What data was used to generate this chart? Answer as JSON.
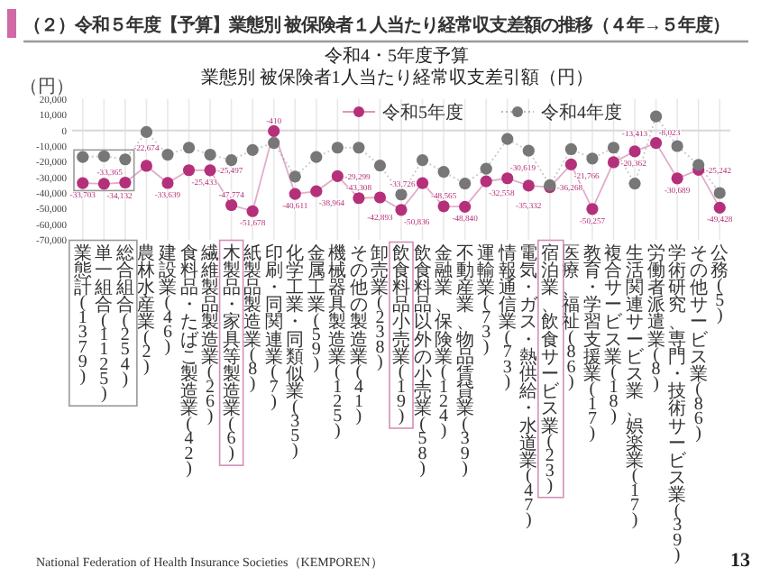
{
  "chart_data": {
    "type": "line",
    "title": "（２）令和５年度【予算】業態別 被保険者１人当たり経常収支差額の推移（４年→５年度）",
    "subtitle": "令和4・5年度予算",
    "ylabel": "（円）",
    "categories": [
      "業態計(1379)",
      "単一組合(1125)",
      "総合組合(254)",
      "農林水産業(2)",
      "建設業(46)",
      "食料品・たばこ製造業(42)",
      "繊維製品製造業(26)",
      "木製品・家具等製造業(6)",
      "紙製品製造業(8)",
      "印刷・同関連業(7)",
      "化学工業・同類似業(35)",
      "金属工業(59)",
      "機械器具製造業(125)",
      "その他の製造業(41)",
      "卸売業(238)",
      "飲食料品小売業(19)",
      "飲食料品以外の小売業(58)",
      "金融業、保険業(124)",
      "不動産業、物品賃貸業(39)",
      "運輸業(73)",
      "情報通信業(73)",
      "電気・ガス・熱供給・水道業(47)",
      "宿泊業、飲食サービス業(23)",
      "医療、福祉(86)",
      "教育・学習支援業(17)",
      "複合サービス業(18)",
      "生活関連サービス業、娯楽業(17)",
      "労働者派遣業(8)",
      "学術研究、専門・技術サービス業(39)",
      "その他サービス業(86)",
      "公務(5)"
    ],
    "series": [
      {
        "name": "令和5年度",
        "color": "#b5307a",
        "line_style": "solid",
        "values": [
          -33703,
          -34132,
          -33365,
          -22674,
          -33639,
          -25433,
          -25497,
          -47774,
          -51678,
          -410,
          -40611,
          -38964,
          -29299,
          -43308,
          -42893,
          -50836,
          -33726,
          -48565,
          -48840,
          -32558,
          -30619,
          -35332,
          -36268,
          -21766,
          -50257,
          -20362,
          -13413,
          -8023,
          -30689,
          -25242,
          -49428
        ],
        "value_labels": [
          "-33,703",
          "-34,132",
          "-33,365",
          "-22,674",
          "-33,639",
          "-25,433",
          "-25,497",
          "-47,774",
          "-51,678",
          "-410",
          "-40,611",
          "-38,964",
          "-29,299",
          "-43,308",
          "-42,893",
          "-50,836",
          "-33,726",
          "-48,565",
          "-48,840",
          "-32,558",
          "-30,619",
          "-35,332",
          "-36,268",
          "-21,766",
          "-50,257",
          "-20,362",
          "-13,413",
          "-8,023",
          "-30,689",
          "-25,242",
          "-49,428"
        ]
      },
      {
        "name": "令和4年度",
        "color": "#777777",
        "line_style": "dotted",
        "values": [
          -17000,
          -16500,
          -18500,
          -1000,
          -15500,
          -11000,
          -15500,
          -19000,
          -12500,
          -8000,
          -29500,
          -17000,
          -11000,
          -11000,
          -22500,
          -41000,
          -19000,
          -26500,
          -34000,
          -24500,
          -5500,
          -13000,
          -35000,
          -12000,
          -18000,
          -11000,
          -34000,
          9000,
          -10000,
          -22000,
          -40000
        ]
      }
    ],
    "ylim": [
      -70000,
      20000
    ],
    "yticks": [
      {
        "value": 20000,
        "label": "20,000"
      },
      {
        "value": 10000,
        "label": "10,000"
      },
      0,
      {
        "value": -10000,
        "label": "-10,000"
      },
      {
        "value": -20000,
        "label": "-20,000"
      },
      {
        "value": -30000,
        "label": "-30,000"
      },
      {
        "value": -40000,
        "label": "-40,000"
      },
      {
        "value": -50000,
        "label": "-50,000"
      },
      {
        "value": -60000,
        "label": "-60,000"
      },
      {
        "value": -70000,
        "label": "-70,000"
      }
    ],
    "ref_lines": [
      {
        "axis": "y",
        "value": 0,
        "color": "#d8d8d8"
      }
    ],
    "grid": "x",
    "legend": "top right",
    "marker": "circle",
    "annotations": [
      "業態別 被保険者1人当たり経常収支差引額（円）",
      "National Federation of Health Insurance Societies（KEMPOREN）",
      "13"
    ]
  }
}
